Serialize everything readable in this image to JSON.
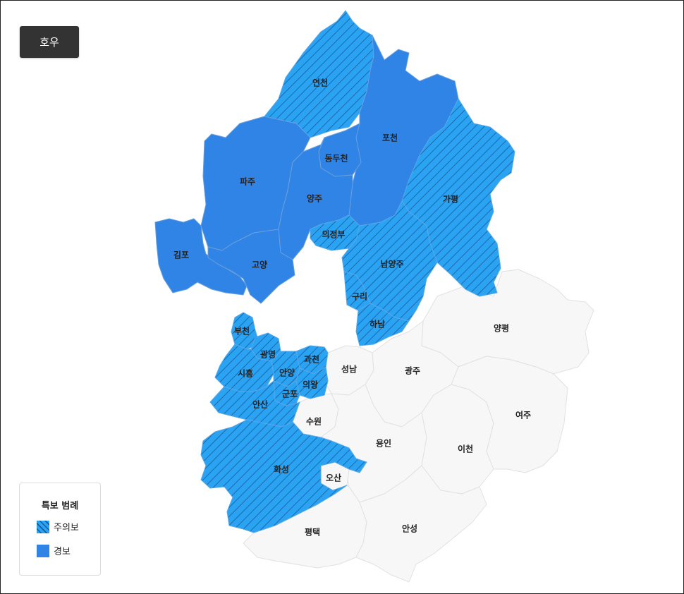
{
  "map_type_button": "호우",
  "colors": {
    "advisory": "#2aa3f2",
    "warning": "#2f84e6",
    "none": "#f7f7f7"
  },
  "regions": [
    {
      "id": "yeoncheon",
      "name": "연천",
      "level": "advisory"
    },
    {
      "id": "pocheon",
      "name": "포천",
      "level": "warning"
    },
    {
      "id": "dongducheon",
      "name": "동두천",
      "level": "warning"
    },
    {
      "id": "paju",
      "name": "파주",
      "level": "warning"
    },
    {
      "id": "yangju",
      "name": "양주",
      "level": "warning"
    },
    {
      "id": "gapyeong",
      "name": "가평",
      "level": "advisory"
    },
    {
      "id": "gimpo",
      "name": "김포",
      "level": "warning"
    },
    {
      "id": "goyang",
      "name": "고양",
      "level": "warning"
    },
    {
      "id": "uijeongbu",
      "name": "의정부",
      "level": "advisory"
    },
    {
      "id": "namyangju",
      "name": "남양주",
      "level": "advisory"
    },
    {
      "id": "guri",
      "name": "구리",
      "level": "advisory"
    },
    {
      "id": "hanam",
      "name": "하남",
      "level": "advisory"
    },
    {
      "id": "yangpyeong",
      "name": "양평",
      "level": "none"
    },
    {
      "id": "bucheon",
      "name": "부천",
      "level": "advisory"
    },
    {
      "id": "gwangmyeong",
      "name": "광명",
      "level": "advisory"
    },
    {
      "id": "gwacheon",
      "name": "과천",
      "level": "advisory"
    },
    {
      "id": "siheung",
      "name": "시흥",
      "level": "advisory"
    },
    {
      "id": "anyang",
      "name": "안양",
      "level": "advisory"
    },
    {
      "id": "uiwang",
      "name": "의왕",
      "level": "advisory"
    },
    {
      "id": "gunpo",
      "name": "군포",
      "level": "advisory"
    },
    {
      "id": "ansan",
      "name": "안산",
      "level": "advisory"
    },
    {
      "id": "seongnam",
      "name": "성남",
      "level": "none"
    },
    {
      "id": "gwangju",
      "name": "광주",
      "level": "none"
    },
    {
      "id": "suwon",
      "name": "수원",
      "level": "none"
    },
    {
      "id": "yongin",
      "name": "용인",
      "level": "none"
    },
    {
      "id": "icheon",
      "name": "이천",
      "level": "none"
    },
    {
      "id": "yeoju",
      "name": "여주",
      "level": "none"
    },
    {
      "id": "hwaseong",
      "name": "화성",
      "level": "advisory"
    },
    {
      "id": "osan",
      "name": "오산",
      "level": "none"
    },
    {
      "id": "pyeongtaek",
      "name": "평택",
      "level": "none"
    },
    {
      "id": "anseong",
      "name": "안성",
      "level": "none"
    }
  ],
  "legend": {
    "title": "특보 범례",
    "items": [
      {
        "label": "주의보",
        "level": "advisory"
      },
      {
        "label": "경보",
        "level": "warning"
      }
    ]
  }
}
